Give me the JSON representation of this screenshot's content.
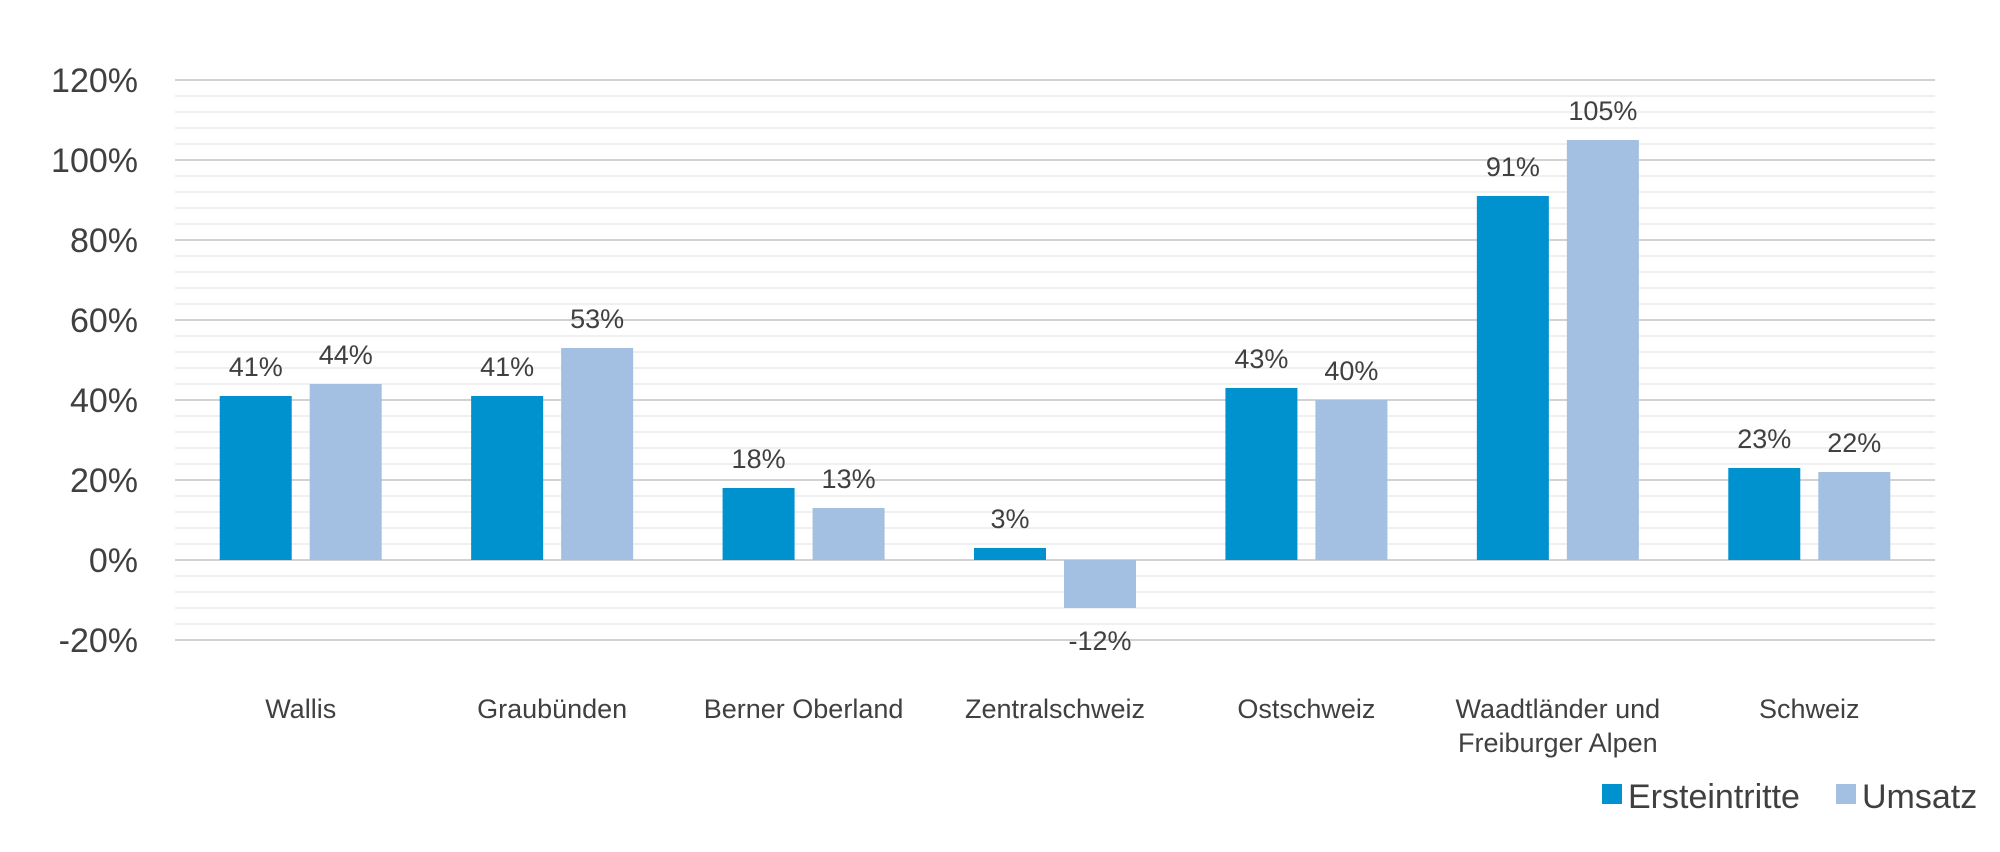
{
  "chart_data": {
    "type": "bar",
    "title": "",
    "xlabel": "",
    "ylabel": "",
    "ylim": [
      -20,
      120
    ],
    "ytick_step": 20,
    "ytick_labels": [
      "-20%",
      "0%",
      "20%",
      "40%",
      "60%",
      "80%",
      "100%",
      "120%"
    ],
    "grid": true,
    "legend_position": "bottom-right",
    "categories": [
      [
        "Wallis"
      ],
      [
        "Graubünden"
      ],
      [
        "Berner Oberland"
      ],
      [
        "Zentralschweiz"
      ],
      [
        "Ostschweiz"
      ],
      [
        "Waadtländer und",
        "Freiburger Alpen"
      ],
      [
        "Schweiz"
      ]
    ],
    "series": [
      {
        "name": "Ersteintritte",
        "color": "#0091CF",
        "values": [
          41,
          41,
          18,
          3,
          43,
          91,
          23
        ],
        "labels": [
          "41%",
          "41%",
          "18%",
          "3%",
          "43%",
          "91%",
          "23%"
        ]
      },
      {
        "name": "Umsatz",
        "color": "#A3BFE2",
        "values": [
          44,
          53,
          13,
          -12,
          40,
          105,
          22
        ],
        "labels": [
          "44%",
          "53%",
          "13%",
          "-12%",
          "40%",
          "105%",
          "22%"
        ]
      }
    ]
  }
}
